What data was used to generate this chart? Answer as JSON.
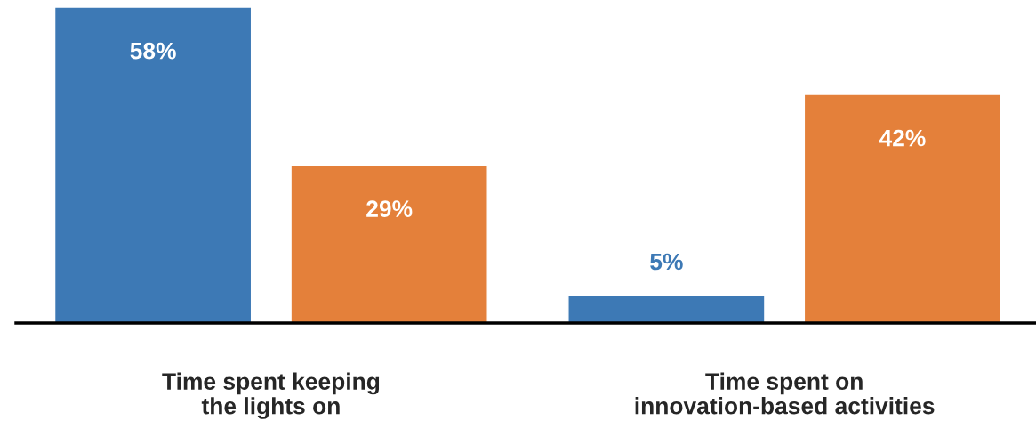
{
  "chart_data": {
    "type": "bar",
    "categories": [
      "Time spent keeping\nthe lights on",
      "Time spent on\ninnovation-based activities"
    ],
    "series": [
      {
        "color": "#3d79b5",
        "values": [
          58,
          5
        ],
        "value_labels": [
          "58%",
          "5%"
        ]
      },
      {
        "color": "#e4803a",
        "values": [
          29,
          42
        ],
        "value_labels": [
          "29%",
          "42%"
        ]
      }
    ],
    "ylim": [
      0,
      58
    ],
    "tick_labels": "x"
  }
}
